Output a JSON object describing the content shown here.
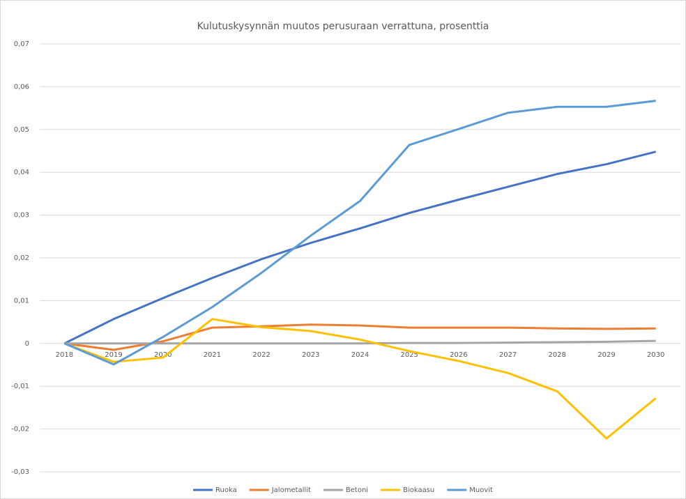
{
  "chart_data": {
    "type": "line",
    "title": "Kulutuskysynnän muutos perusuraan verrattuna, prosenttia",
    "categories": [
      "2018",
      "2019",
      "2020",
      "2021",
      "2022",
      "2023",
      "2024",
      "2025",
      "2026",
      "2027",
      "2028",
      "2029",
      "2030"
    ],
    "series": [
      {
        "name": "Ruoka",
        "color": "#4472c4",
        "values": [
          0,
          0.0057,
          0.0106,
          0.0153,
          0.0197,
          0.0235,
          0.0269,
          0.0305,
          0.0336,
          0.0366,
          0.0396,
          0.0419,
          0.0448
        ]
      },
      {
        "name": "Jalometallit",
        "color": "#ed7d31",
        "values": [
          0,
          -0.0015,
          0.0005,
          0.0037,
          0.004,
          0.0044,
          0.0042,
          0.0037,
          0.0037,
          0.0037,
          0.0035,
          0.0034,
          0.0035
        ]
      },
      {
        "name": "Betoni",
        "color": "#a5a5a5",
        "values": [
          0,
          0,
          0,
          0,
          0,
          0,
          0,
          0.0001,
          0.0001,
          0.0002,
          0.0003,
          0.0004,
          0.0006
        ]
      },
      {
        "name": "Biokaasu",
        "color": "#ffc000",
        "values": [
          0,
          -0.0043,
          -0.0033,
          0.0057,
          0.0038,
          0.0029,
          0.0009,
          -0.0018,
          -0.0041,
          -0.0069,
          -0.0112,
          -0.0222,
          -0.0128
        ]
      },
      {
        "name": "Muovit",
        "color": "#5b9bd5",
        "values": [
          0,
          -0.0049,
          0.0015,
          0.0085,
          0.0165,
          0.0252,
          0.0333,
          0.0464,
          0.0501,
          0.0539,
          0.0553,
          0.0553,
          0.0567
        ]
      }
    ],
    "ylim": [
      -0.03,
      0.07
    ],
    "yticks": [
      {
        "value": -0.03,
        "label": "-0,03"
      },
      {
        "value": -0.02,
        "label": "-0,02"
      },
      {
        "value": -0.01,
        "label": "-0,01"
      },
      0,
      {
        "value": 0.01,
        "label": "0,01"
      },
      {
        "value": 0.02,
        "label": "0,02"
      },
      {
        "value": 0.03,
        "label": "0,03"
      },
      {
        "value": 0.04,
        "label": "0,04"
      },
      {
        "value": 0.05,
        "label": "0,05"
      },
      {
        "value": 0.06,
        "label": "0,06"
      },
      {
        "value": 0.07,
        "label": "0,07"
      }
    ],
    "grid": true,
    "legend": "bottom"
  }
}
